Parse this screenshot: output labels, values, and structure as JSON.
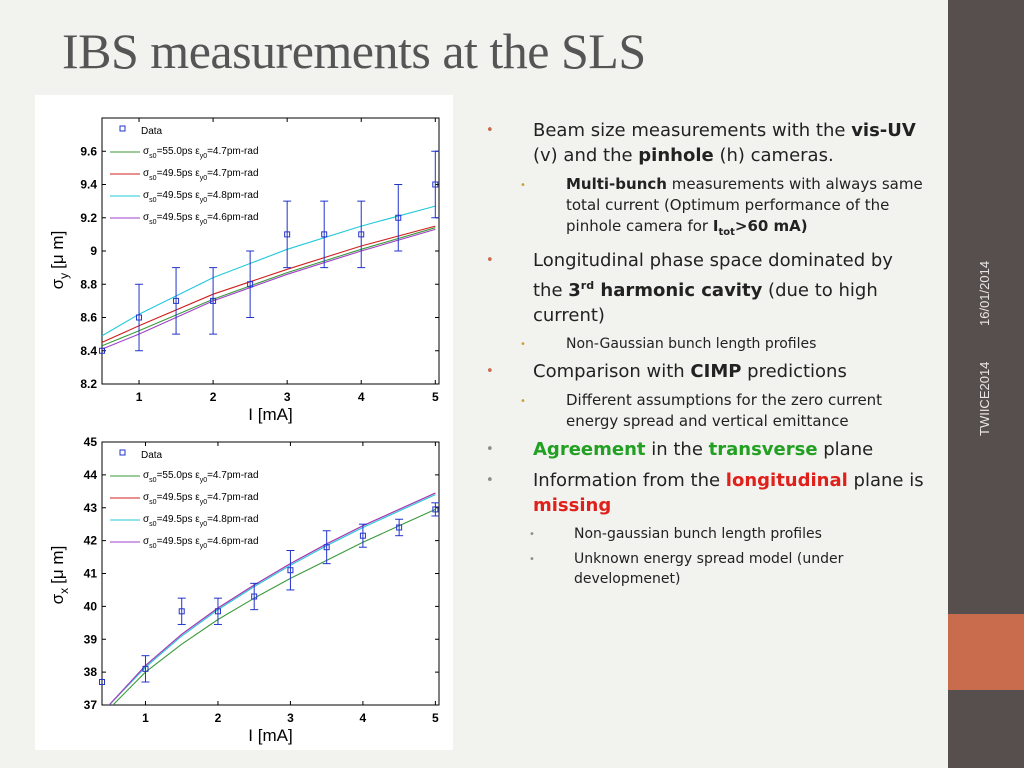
{
  "slide": {
    "title": "IBS measurements at the SLS",
    "date": "16/01/2014",
    "footer": "TWIICE2014",
    "colors": {
      "sidebar": "#564f4d",
      "accent": "#c96c4e",
      "green": "#22a022",
      "red": "#e0201a"
    }
  },
  "bullets": {
    "b1": {
      "t1": "Beam size measurements with the ",
      "b1": "vis-UV",
      "t2": " (v) and the ",
      "b2": "pinhole",
      "t3": " (h) cameras."
    },
    "b1s1": {
      "b1": "Multi-bunch",
      "t1": " measurements with always same total current (Optimum performance of the pinhole camera for ",
      "b2": "I",
      "sub": "tot",
      "b3": ">60 mA)"
    },
    "b2": {
      "t1": "Longitudinal phase space dominated by the ",
      "b1": "3",
      "sup": "rd",
      "b2": " harmonic cavity",
      "t2": " (due to high current)"
    },
    "b2s1": {
      "t": "Non-Gaussian bunch length profiles"
    },
    "b3": {
      "t1": "Comparison with ",
      "b1": "CIMP",
      "t2": " predictions"
    },
    "b3s1": {
      "t": "Different assumptions for the zero current energy spread and vertical emittance"
    },
    "b4": {
      "g1": "Agreement",
      "t1": " in the ",
      "g2": "transverse",
      "t2": " plane"
    },
    "b5": {
      "t1": "Information from the ",
      "r1": "longitudinal",
      "t2": " plane is ",
      "r2": "missing"
    },
    "b5s1": {
      "t": "Non-gaussian bunch length profiles"
    },
    "b5s2": {
      "t": "Unknown energy spread model (under developmenet)"
    }
  },
  "chart_data": [
    {
      "type": "line",
      "xlabel": "I [mA]",
      "ylabel_main": "σ",
      "ylabel_sub": "y",
      "ylabel_unit": "[μ m]",
      "xlim": [
        0.5,
        5.05
      ],
      "ylim": [
        8.2,
        9.8
      ],
      "xticks": [
        1,
        2,
        3,
        4,
        5
      ],
      "yticks": [
        8.2,
        8.4,
        8.6,
        8.8,
        9,
        9.2,
        9.4,
        9.6
      ],
      "yticklabels": [
        "8.2",
        "8.4",
        "8.6",
        "8.8",
        "9",
        "9.2",
        "9.4",
        "9.6"
      ],
      "legend_position": "top-left",
      "data_series": {
        "name": "Data",
        "color": "#2233cc",
        "x": [
          0.5,
          1,
          1.5,
          2,
          2.5,
          3,
          3.5,
          4,
          4.5,
          5
        ],
        "y": [
          8.4,
          8.6,
          8.7,
          8.7,
          8.8,
          9.1,
          9.1,
          9.1,
          9.2,
          9.4
        ],
        "err": [
          0.0,
          0.2,
          0.2,
          0.2,
          0.2,
          0.2,
          0.2,
          0.2,
          0.2,
          0.2
        ]
      },
      "series": [
        {
          "sigma": "55.0ps",
          "eps": "4.7pm-rad",
          "color": "#3a9a3a",
          "x": [
            0.5,
            1,
            2,
            3,
            4,
            5
          ],
          "y": [
            8.43,
            8.52,
            8.71,
            8.87,
            9.01,
            9.14
          ]
        },
        {
          "sigma": "49.5ps",
          "eps": "4.7pm-rad",
          "color": "#d02020",
          "x": [
            0.5,
            1,
            2,
            3,
            4,
            5
          ],
          "y": [
            8.45,
            8.55,
            8.74,
            8.89,
            9.03,
            9.15
          ]
        },
        {
          "sigma": "49.5ps",
          "eps": "4.8pm-rad",
          "color": "#22c8d8",
          "x": [
            0.5,
            1,
            2,
            3,
            4,
            5
          ],
          "y": [
            8.49,
            8.62,
            8.84,
            9.01,
            9.15,
            9.27
          ]
        },
        {
          "sigma": "49.5ps",
          "eps": "4.6pm-rad",
          "color": "#a040c8",
          "x": [
            0.5,
            1,
            2,
            3,
            4,
            5
          ],
          "y": [
            8.41,
            8.5,
            8.7,
            8.86,
            9.0,
            9.13
          ]
        }
      ]
    },
    {
      "type": "line",
      "xlabel": "I [mA]",
      "ylabel_main": "σ",
      "ylabel_sub": "x",
      "ylabel_unit": "[μ m]",
      "xlim": [
        0.4,
        5.05
      ],
      "ylim": [
        37,
        45
      ],
      "xticks": [
        1,
        2,
        3,
        4,
        5
      ],
      "yticks": [
        37,
        38,
        39,
        40,
        41,
        42,
        43,
        44,
        45
      ],
      "yticklabels": [
        "37",
        "38",
        "39",
        "40",
        "41",
        "42",
        "43",
        "44",
        "45"
      ],
      "legend_position": "top-left",
      "data_series": {
        "name": "Data",
        "color": "#2233cc",
        "x": [
          0.4,
          1,
          1.5,
          2,
          2.5,
          3,
          3.5,
          4,
          4.5,
          5
        ],
        "y": [
          37.7,
          38.1,
          39.85,
          39.85,
          40.3,
          41.1,
          41.8,
          42.15,
          42.4,
          42.95
        ],
        "err": [
          0.0,
          0.4,
          0.4,
          0.4,
          0.4,
          0.6,
          0.5,
          0.35,
          0.25,
          0.2
        ]
      },
      "series": [
        {
          "sigma": "55.0ps",
          "eps": "4.7pm-rad",
          "color": "#3a9a3a",
          "x": [
            0.55,
            1,
            1.5,
            2,
            2.5,
            3,
            3.5,
            4,
            4.5,
            5
          ],
          "y": [
            37.0,
            38.0,
            38.85,
            39.6,
            40.25,
            40.85,
            41.4,
            41.95,
            42.45,
            42.95
          ]
        },
        {
          "sigma": "49.5ps",
          "eps": "4.7pm-rad",
          "color": "#d02020",
          "x": [
            0.5,
            1,
            1.5,
            2,
            2.5,
            3,
            3.5,
            4,
            4.5,
            5
          ],
          "y": [
            37.0,
            38.2,
            39.15,
            39.95,
            40.65,
            41.3,
            41.9,
            42.45,
            42.95,
            43.45
          ]
        },
        {
          "sigma": "49.5ps",
          "eps": "4.8pm-rad",
          "color": "#22c8d8",
          "x": [
            0.5,
            1,
            1.5,
            2,
            2.5,
            3,
            3.5,
            4,
            4.5,
            5
          ],
          "y": [
            37.0,
            38.15,
            39.1,
            39.9,
            40.6,
            41.25,
            41.85,
            42.4,
            42.9,
            43.4
          ]
        },
        {
          "sigma": "49.5ps",
          "eps": "4.6pm-rad",
          "color": "#a040c8",
          "x": [
            0.5,
            1,
            1.5,
            2,
            2.5,
            3,
            3.5,
            4,
            4.5,
            5
          ],
          "y": [
            37.0,
            38.2,
            39.15,
            39.95,
            40.65,
            41.3,
            41.9,
            42.45,
            42.95,
            43.45
          ]
        }
      ]
    }
  ]
}
